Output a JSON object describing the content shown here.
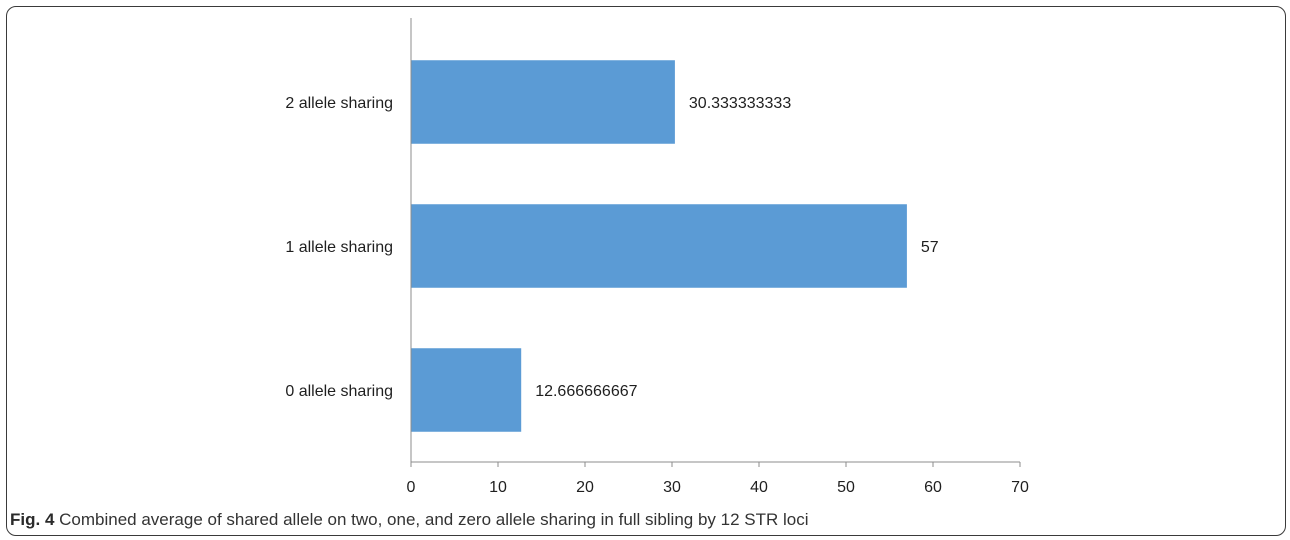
{
  "chart_data": {
    "type": "bar",
    "orientation": "horizontal",
    "categories": [
      "2 allele sharing",
      "1 allele sharing",
      "0 allele sharing"
    ],
    "values": [
      30.333333333,
      57,
      12.666666667
    ],
    "data_labels": [
      "30.333333333",
      "57",
      "12.666666667"
    ],
    "xlim": [
      0,
      70
    ],
    "xticks": [
      "0",
      "10",
      "20",
      "30",
      "40",
      "50",
      "60",
      "70"
    ],
    "grid": false,
    "legend": "none",
    "bar_color": "#5b9bd5"
  },
  "caption": {
    "label": "Fig. 4",
    "text": " Combined average of shared allele on two, one, and zero allele sharing in full sibling by 12 STR loci"
  }
}
